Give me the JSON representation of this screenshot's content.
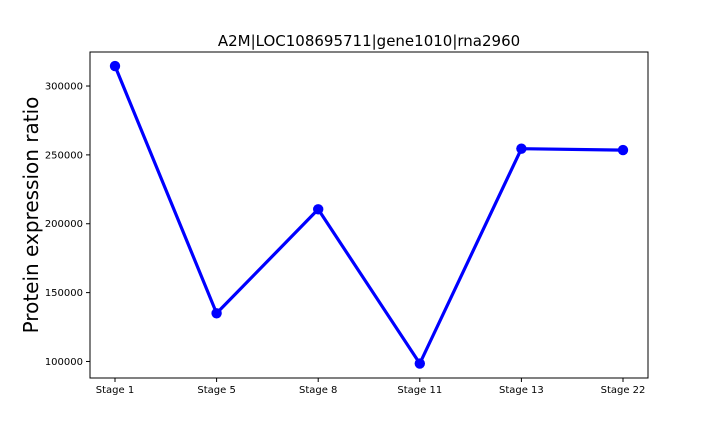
{
  "chart_data": {
    "type": "line",
    "title": "A2M|LOC108695711|gene1010|rna2960",
    "xlabel": "",
    "ylabel": "Protein expression ratio",
    "categories": [
      "Stage 1",
      "Stage 5",
      "Stage 8",
      "Stage 11",
      "Stage 13",
      "Stage 22"
    ],
    "series": [
      {
        "values": [
          314500,
          135000,
          210500,
          98500,
          254500,
          253500
        ],
        "color": "#0000ff"
      }
    ],
    "ylim": [
      88000,
      324700
    ],
    "yticks": [
      100000,
      150000,
      200000,
      250000,
      300000
    ],
    "ytick_labels": [
      "100000",
      "150000",
      "200000",
      "250000",
      "300000"
    ],
    "grid": false,
    "legend": "none"
  }
}
